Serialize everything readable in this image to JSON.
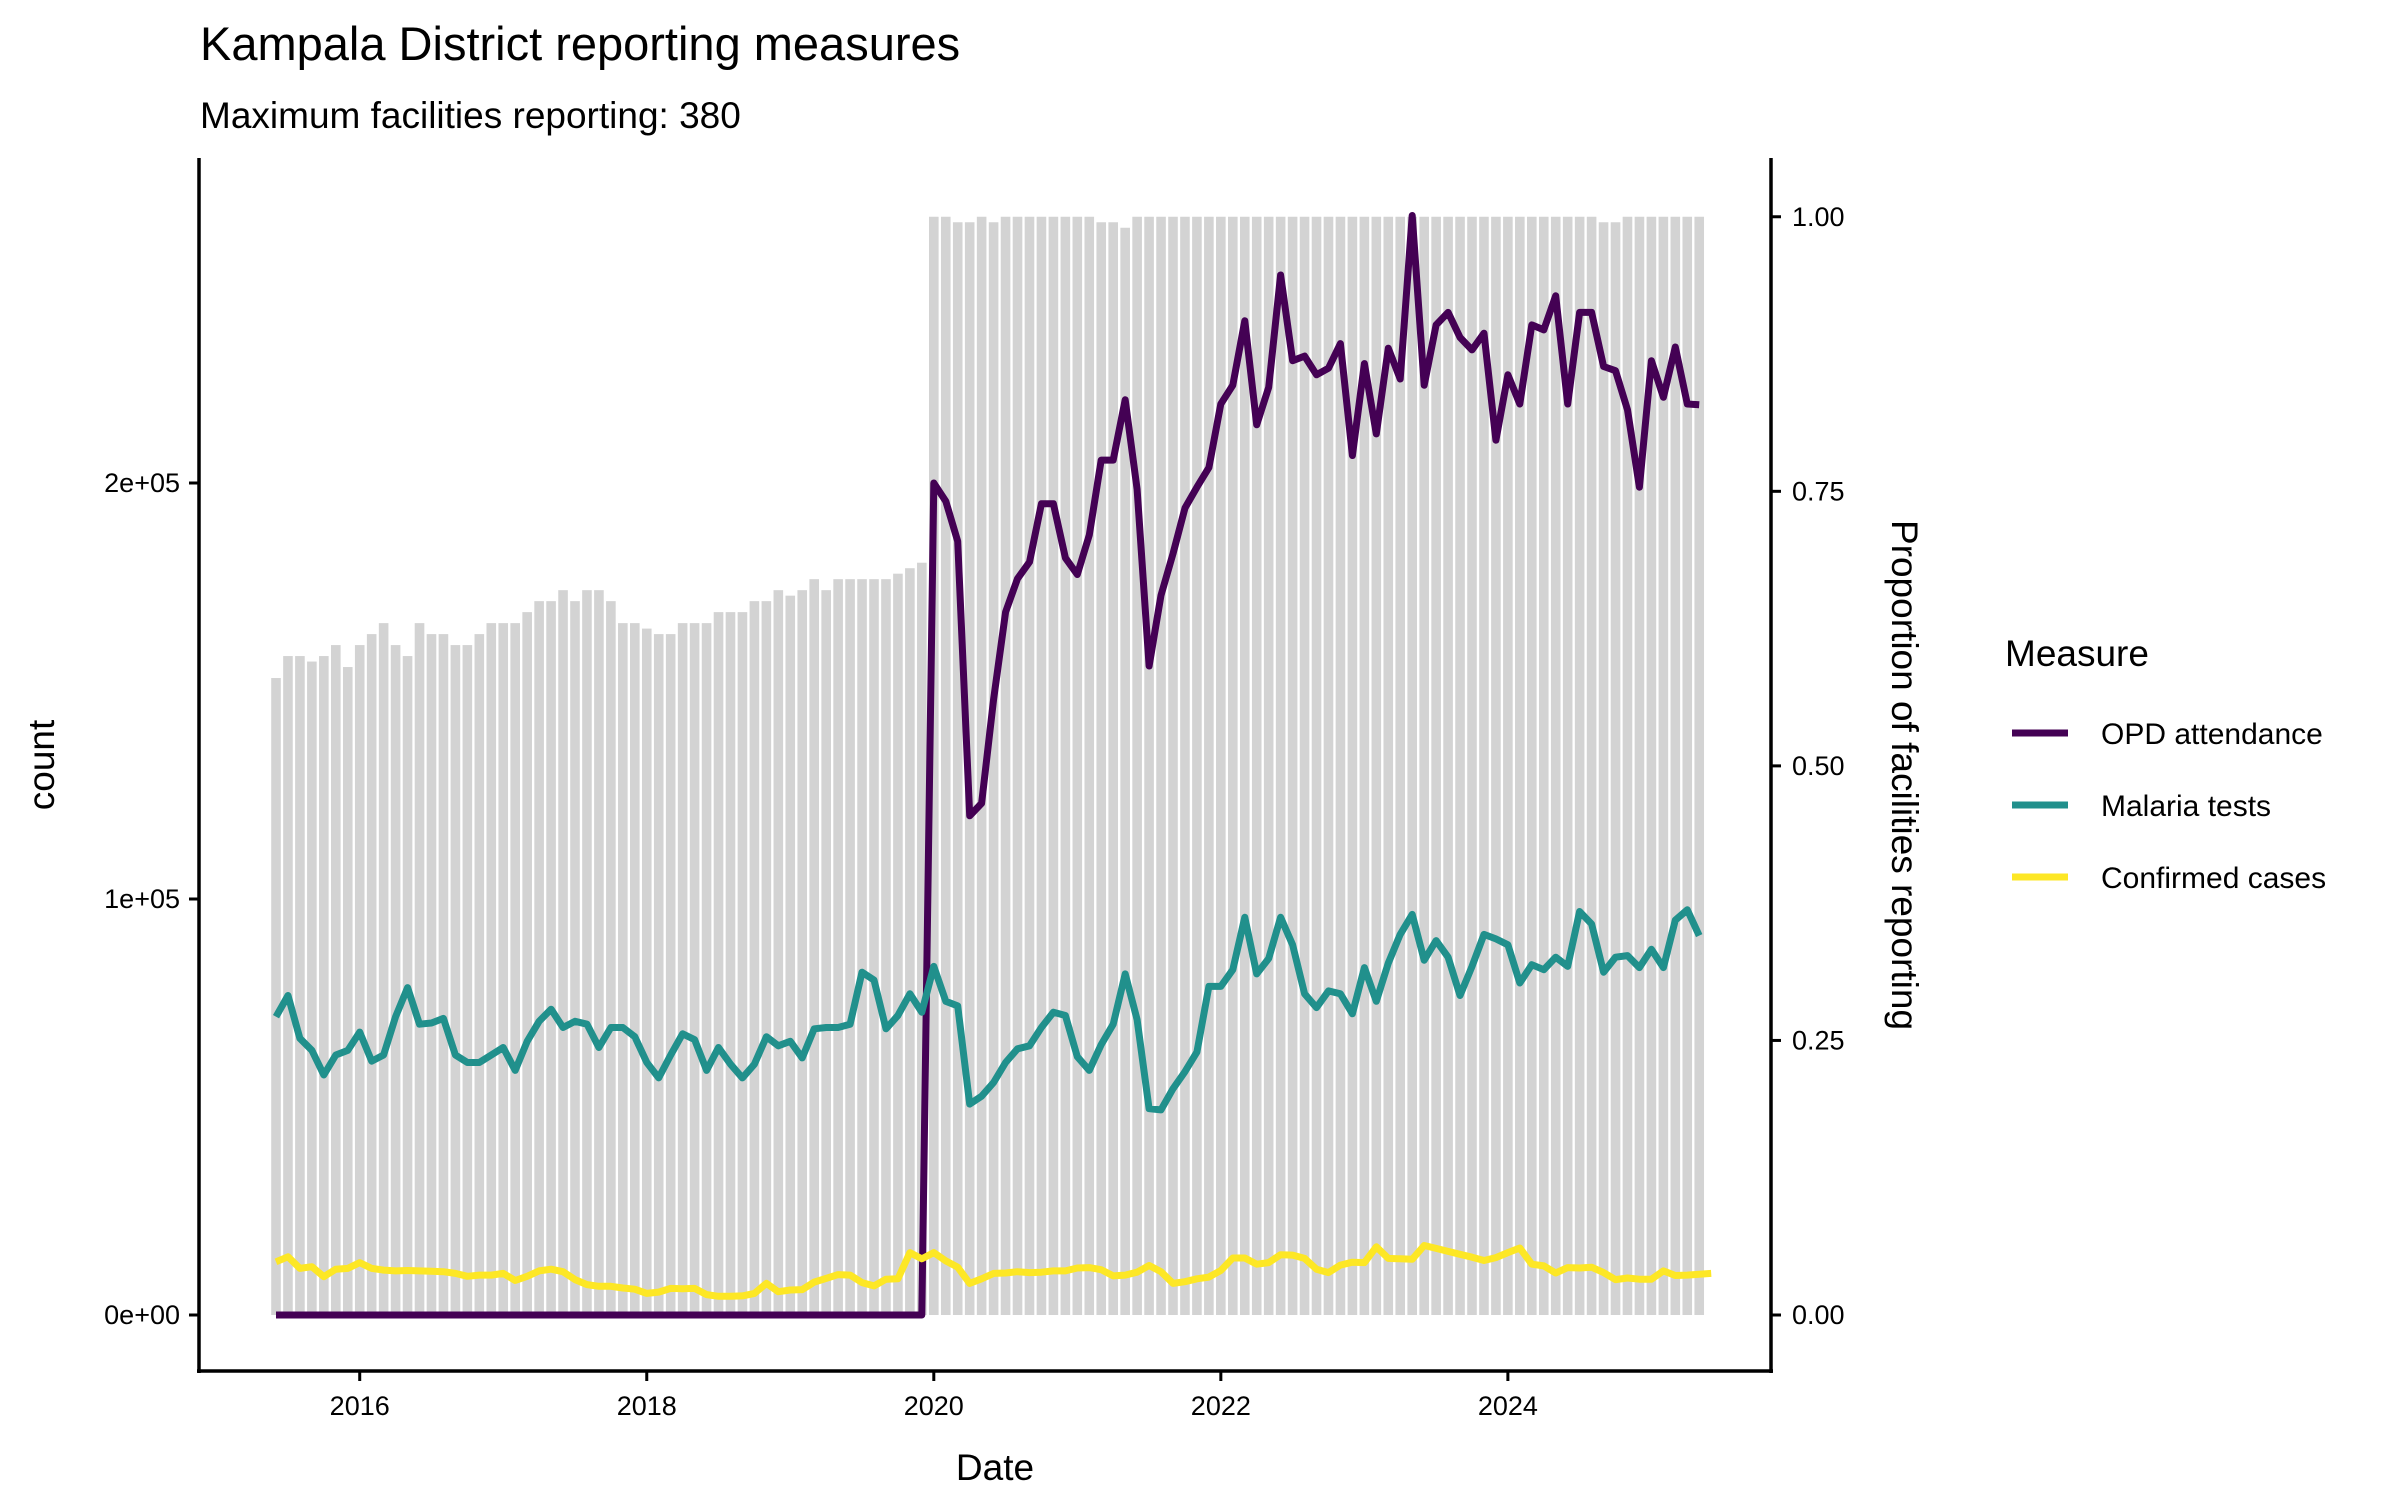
{
  "chart_data": {
    "type": "bar+line",
    "title": "Kampala District reporting measures",
    "subtitle": "Maximum facilities reporting: 380",
    "xlabel": "Date",
    "ylabel": "count",
    "y2label": "Proportion of facilities reporting",
    "x_start": "2015-06",
    "x_end": "2025-05",
    "x_ticks": [
      "2016",
      "2018",
      "2020",
      "2022",
      "2024"
    ],
    "x_tick_years": [
      2016,
      2018,
      2020,
      2022,
      2024
    ],
    "y_ticks": [
      0,
      100000,
      200000
    ],
    "y_tick_labels": [
      "0e+00",
      "1e+05",
      "2e+05"
    ],
    "y2_ticks": [
      0,
      0.25,
      0.5,
      0.75,
      1.0
    ],
    "y2_tick_labels": [
      "0.00",
      "0.25",
      "0.50",
      "0.75",
      "1.00"
    ],
    "y2_to_y_scale": 264000,
    "grid": false,
    "legend_position": "right",
    "legend_title": "Measure",
    "colors": {
      "bars": "#d3d3d3",
      "OPD attendance": "#440154",
      "Malaria tests": "#21908c",
      "Confirmed cases": "#fde725"
    },
    "bars": {
      "name": "Proportion of facilities reporting",
      "values": [
        0.58,
        0.6,
        0.6,
        0.595,
        0.6,
        0.61,
        0.59,
        0.61,
        0.62,
        0.63,
        0.61,
        0.6,
        0.63,
        0.62,
        0.62,
        0.61,
        0.61,
        0.62,
        0.63,
        0.63,
        0.63,
        0.64,
        0.65,
        0.65,
        0.66,
        0.65,
        0.66,
        0.66,
        0.65,
        0.63,
        0.63,
        0.625,
        0.62,
        0.62,
        0.63,
        0.63,
        0.63,
        0.64,
        0.64,
        0.64,
        0.65,
        0.65,
        0.66,
        0.655,
        0.66,
        0.67,
        0.66,
        0.67,
        0.67,
        0.67,
        0.67,
        0.67,
        0.675,
        0.68,
        0.685,
        1.0,
        1.0,
        0.995,
        0.995,
        1.0,
        0.995,
        1.0,
        1.0,
        1.0,
        1.0,
        1.0,
        1.0,
        1.0,
        1.0,
        0.995,
        0.995,
        0.99,
        1.0,
        1.0,
        1.0,
        1.0,
        1.0,
        1.0,
        1.0,
        1.0,
        1.0,
        1.0,
        1.0,
        1.0,
        1.0,
        1.0,
        1.0,
        1.0,
        1.0,
        1.0,
        1.0,
        1.0,
        1.0,
        1.0,
        1.0,
        1.0,
        1.0,
        1.0,
        1.0,
        1.0,
        1.0,
        1.0,
        1.0,
        1.0,
        1.0,
        1.0,
        1.0,
        1.0,
        1.0,
        1.0,
        1.0,
        0.995,
        0.995,
        1.0,
        1.0,
        1.0,
        1.0,
        1.0,
        1.0,
        1.0
      ]
    },
    "series": [
      {
        "name": "OPD attendance",
        "values": [
          0,
          0,
          0,
          0,
          0,
          0,
          0,
          0,
          0,
          0,
          0,
          0,
          0,
          0,
          0,
          0,
          0,
          0,
          0,
          0,
          0,
          0,
          0,
          0,
          0,
          0,
          0,
          0,
          0,
          0,
          0,
          0,
          0,
          0,
          0,
          0,
          0,
          0,
          0,
          0,
          0,
          0,
          0,
          0,
          0,
          0,
          0,
          0,
          0,
          0,
          0,
          0,
          0,
          0,
          0,
          200000,
          195600,
          186000,
          120000,
          123000,
          148000,
          169000,
          177000,
          181000,
          195000,
          195000,
          182000,
          178000,
          187500,
          205500,
          205500,
          220000,
          198500,
          156000,
          173000,
          183000,
          194000,
          199000,
          203700,
          219000,
          223500,
          239000,
          214000,
          223000,
          250000,
          229400,
          230500,
          226000,
          227600,
          233500,
          206600,
          228700,
          211800,
          232400,
          225000,
          264300,
          223500,
          238000,
          241000,
          235000,
          232000,
          236000,
          210300,
          226000,
          219000,
          238000,
          236800,
          245000,
          219000,
          241000,
          241000,
          228000,
          227000,
          217600,
          199000,
          229400,
          220600,
          232700,
          219000,
          218800
        ]
      },
      {
        "name": "Malaria tests",
        "values": [
          71700,
          76800,
          66500,
          63600,
          57700,
          62500,
          63600,
          68000,
          61000,
          62500,
          71700,
          78700,
          69900,
          70200,
          71300,
          62500,
          60700,
          60700,
          62500,
          64300,
          58800,
          65800,
          70600,
          73500,
          69100,
          70600,
          69900,
          64300,
          69100,
          69100,
          66900,
          60700,
          57000,
          62500,
          67600,
          66200,
          58800,
          64300,
          60300,
          57000,
          60300,
          66900,
          64700,
          65800,
          61800,
          68800,
          69100,
          69100,
          69900,
          82400,
          80500,
          68800,
          72000,
          77200,
          72800,
          83800,
          75400,
          74300,
          50700,
          52600,
          55900,
          60700,
          64000,
          64700,
          69100,
          72800,
          72000,
          62100,
          58800,
          65000,
          69900,
          82000,
          71000,
          49600,
          49300,
          54400,
          58500,
          63200,
          79000,
          79000,
          83000,
          95600,
          82000,
          85700,
          95600,
          89000,
          77200,
          73900,
          77900,
          77200,
          72400,
          83500,
          75400,
          84600,
          91500,
          96300,
          85300,
          90000,
          86000,
          76800,
          83800,
          91500,
          90400,
          89000,
          79800,
          84200,
          83000,
          86000,
          83800,
          97000,
          94000,
          82400,
          86000,
          86400,
          83500,
          87900,
          83500,
          94900,
          97400,
          91200
        ]
      },
      {
        "name": "Confirmed cases",
        "values": [
          12800,
          14000,
          11200,
          11600,
          9200,
          11000,
          11200,
          12600,
          11200,
          10800,
          10600,
          10700,
          10600,
          10500,
          10400,
          10000,
          9300,
          9600,
          9600,
          10000,
          8300,
          9300,
          10600,
          11000,
          10400,
          8500,
          7300,
          6900,
          6900,
          6500,
          6200,
          5200,
          5500,
          6400,
          6300,
          6400,
          4900,
          4500,
          4500,
          4600,
          5200,
          7600,
          5600,
          6000,
          6100,
          7900,
          8800,
          9700,
          9600,
          7800,
          7000,
          8600,
          8700,
          15000,
          13500,
          15000,
          13000,
          11500,
          7600,
          8700,
          10000,
          10100,
          10400,
          10200,
          10300,
          10600,
          10600,
          11300,
          11400,
          10900,
          9400,
          9600,
          10300,
          11900,
          10400,
          7600,
          8000,
          8700,
          9100,
          10700,
          13700,
          13700,
          12200,
          12600,
          14500,
          14400,
          13600,
          11000,
          10200,
          12000,
          12700,
          12600,
          16400,
          13600,
          13500,
          13400,
          16700,
          16000,
          15300,
          14600,
          13900,
          13100,
          13800,
          15000,
          16100,
          12200,
          11800,
          10100,
          11400,
          11300,
          11500,
          10200,
          8500,
          8900,
          8600,
          8600,
          10600,
          9500,
          9600,
          9800,
          10000
        ]
      }
    ]
  }
}
